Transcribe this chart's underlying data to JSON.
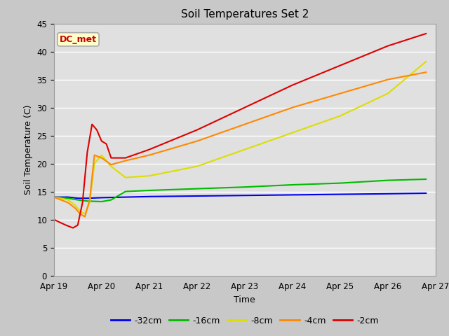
{
  "title": "Soil Temperatures Set 2",
  "xlabel": "Time",
  "ylabel": "Soil Temperature (C)",
  "ylim": [
    0,
    45
  ],
  "yticks": [
    0,
    5,
    10,
    15,
    20,
    25,
    30,
    35,
    40,
    45
  ],
  "fig_bg_color": "#c8c8c8",
  "plot_bg_color": "#e0e0e0",
  "annotation_text": "DC_met",
  "annotation_bg": "#ffffcc",
  "annotation_border": "#aaaaaa",
  "annotation_text_color": "#cc0000",
  "series": {
    "-32cm": {
      "color": "#0000ee",
      "data_x_days": [
        0,
        0.3,
        0.5,
        0.7,
        1.0,
        1.5,
        2.0,
        3.0,
        4.0,
        5.0,
        6.0,
        7.0,
        7.8
      ],
      "data_y": [
        14.0,
        14.0,
        13.8,
        13.8,
        13.9,
        14.0,
        14.1,
        14.2,
        14.3,
        14.4,
        14.5,
        14.6,
        14.7
      ]
    },
    "-16cm": {
      "color": "#00bb00",
      "data_x_days": [
        0,
        0.3,
        0.5,
        0.7,
        1.0,
        1.2,
        1.5,
        2.0,
        3.0,
        4.0,
        5.0,
        6.0,
        7.0,
        7.8
      ],
      "data_y": [
        14.0,
        13.8,
        13.5,
        13.3,
        13.2,
        13.5,
        15.0,
        15.2,
        15.5,
        15.8,
        16.2,
        16.5,
        17.0,
        17.2
      ]
    },
    "-8cm": {
      "color": "#dddd00",
      "data_x_days": [
        0,
        0.3,
        0.45,
        0.55,
        0.65,
        0.75,
        0.85,
        1.0,
        1.2,
        1.5,
        2.0,
        3.0,
        4.0,
        5.0,
        6.0,
        7.0,
        7.8
      ],
      "data_y": [
        14.0,
        13.5,
        12.5,
        11.5,
        11.0,
        13.0,
        20.0,
        21.5,
        19.5,
        17.5,
        17.8,
        19.5,
        22.5,
        25.5,
        28.5,
        32.5,
        38.2
      ]
    },
    "-4cm": {
      "color": "#ff8800",
      "data_x_days": [
        0,
        0.3,
        0.45,
        0.55,
        0.65,
        0.75,
        0.85,
        1.0,
        1.2,
        1.5,
        2.0,
        3.0,
        4.0,
        5.0,
        6.0,
        7.0,
        7.8
      ],
      "data_y": [
        14.0,
        13.0,
        12.0,
        11.0,
        10.5,
        13.5,
        21.5,
        21.0,
        19.8,
        20.5,
        21.5,
        24.0,
        27.0,
        30.0,
        32.5,
        35.0,
        36.3
      ]
    },
    "-2cm": {
      "color": "#dd0000",
      "data_x_days": [
        0,
        0.25,
        0.4,
        0.5,
        0.6,
        0.7,
        0.8,
        0.9,
        1.0,
        1.1,
        1.2,
        1.5,
        2.0,
        3.0,
        4.0,
        5.0,
        6.0,
        7.0,
        7.8
      ],
      "data_y": [
        10.0,
        9.0,
        8.5,
        9.0,
        13.0,
        22.0,
        27.0,
        26.0,
        24.0,
        23.5,
        21.0,
        21.0,
        22.5,
        26.0,
        30.0,
        34.0,
        37.5,
        41.0,
        43.2
      ]
    }
  },
  "x_tick_labels": [
    "Apr 19",
    "Apr 20",
    "Apr 21",
    "Apr 22",
    "Apr 23",
    "Apr 24",
    "Apr 25",
    "Apr 26",
    "Apr 27"
  ],
  "x_tick_days": [
    0,
    1,
    2,
    3,
    4,
    5,
    6,
    7,
    8
  ],
  "xlim": [
    0,
    8
  ],
  "legend_order": [
    "-32cm",
    "-16cm",
    "-8cm",
    "-4cm",
    "-2cm"
  ],
  "legend_colors": [
    "#0000ee",
    "#00bb00",
    "#dddd00",
    "#ff8800",
    "#dd0000"
  ]
}
